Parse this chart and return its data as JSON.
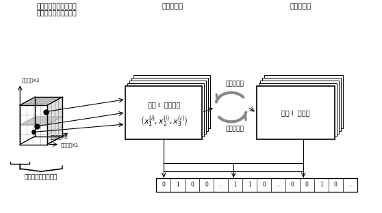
{
  "title_left_line1": "三维遗传算法寻优空间",
  "title_left_line2": "内的拉丁立方投点情况",
  "title_mid": "设计点种群",
  "title_right": "染色体种群",
  "label_x1": "设计变量X1",
  "label_x2": "设计变量X2",
  "label_x3": "设计变量X3",
  "label_inner": "内循环寻优搜索空间",
  "label_encode": "二进制编码",
  "label_decode": "二进制解码",
  "box_design_text1": "个体 i  设计变量",
  "box_chromosome_text": "个体 i  染色体",
  "bg_color": "#ffffff",
  "grid_color": "#999999",
  "face_color_mid": "#c8c8c8",
  "face_color_side": "#e0e0e0"
}
